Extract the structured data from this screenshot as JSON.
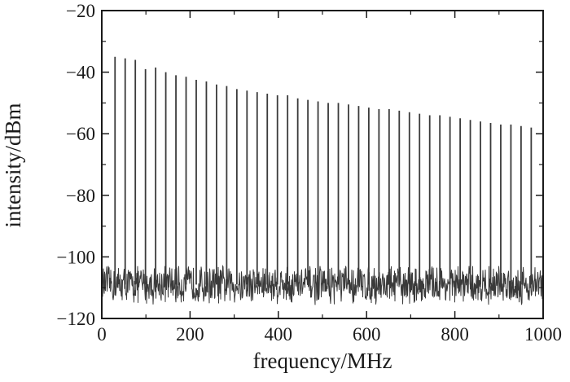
{
  "colors": {
    "trace": "#3a3a3a",
    "axis": "#1a1a1a",
    "background": "#ffffff"
  },
  "chart_data": {
    "type": "line",
    "title": "",
    "xlabel": "frequency/MHz",
    "ylabel": "intensity/dBm",
    "xlim": [
      0,
      1000
    ],
    "ylim": [
      -120,
      -20
    ],
    "x_ticks": [
      0,
      200,
      400,
      600,
      800,
      1000
    ],
    "y_ticks": [
      -20,
      -40,
      -60,
      -80,
      -100,
      -120
    ],
    "x_tick_labels": [
      "0",
      "200",
      "400",
      "600",
      "800",
      "1000"
    ],
    "y_tick_labels": [
      "−20",
      "−40",
      "−60",
      "−80",
      "−100",
      "−120"
    ],
    "grid": false,
    "legend": "none",
    "noise_floor": {
      "x_range": [
        0,
        1000
      ],
      "center": -109,
      "min": -117,
      "max": -103
    },
    "series": [
      {
        "kind": "spectral-lines",
        "frequencies": [
          30,
          53,
          76,
          99,
          122,
          145,
          168,
          191,
          214,
          237,
          260,
          283,
          306,
          329,
          352,
          375,
          398,
          421,
          444,
          467,
          490,
          513,
          536,
          559,
          582,
          605,
          628,
          651,
          674,
          697,
          720,
          743,
          766,
          789,
          812,
          835,
          858,
          881,
          904,
          927,
          950,
          973
        ],
        "peaks": [
          -35,
          -35.5,
          -36,
          -39,
          -38.5,
          -40,
          -41,
          -41.5,
          -42.5,
          -43,
          -44,
          -44.5,
          -45.5,
          -46,
          -46.5,
          -47,
          -47.5,
          -47.5,
          -48.5,
          -49,
          -49.5,
          -50,
          -50,
          -50.5,
          -51,
          -51.5,
          -52,
          -52,
          -52.5,
          -53,
          -53.5,
          -54,
          -54,
          -54.5,
          -55,
          -55.5,
          -56,
          -56.5,
          -57,
          -57,
          -57.5,
          -58
        ]
      }
    ]
  }
}
